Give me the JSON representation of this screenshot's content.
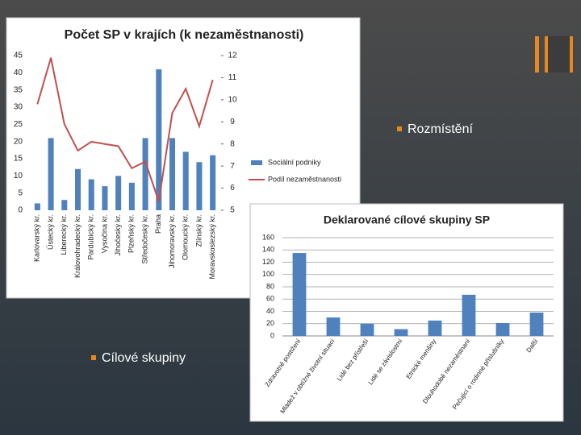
{
  "slide": {
    "bullets": [
      "Rozmístění",
      "Cílové skupiny"
    ]
  },
  "chart_data": [
    {
      "type": "bar",
      "title": "Počet SP v krajích (k nezaměstnanosti)",
      "categories": [
        "Karlovarský kr.",
        "Ústecký kr.",
        "Liberecký kr.",
        "Královohradecký kr.",
        "Pardubický kr.",
        "Vysočina kr.",
        "Jihočeský kr.",
        "Plzeňský kr.",
        "Středočeský kr.",
        "Praha",
        "Jihomoravský kr.",
        "Olomoucký kr.",
        "Zlínský kr.",
        "Moravskoslezský kr."
      ],
      "series": [
        {
          "name": "Sociální podniky",
          "type": "bar",
          "color": "#4f81bd",
          "values": [
            2,
            21,
            3,
            12,
            9,
            7,
            10,
            8,
            21,
            41,
            21,
            17,
            14,
            16
          ]
        },
        {
          "name": "Podíl nezaměstnanosti",
          "type": "line",
          "axis": "y2",
          "color": "#c0504d",
          "values": [
            9.8,
            11.9,
            8.9,
            7.7,
            8.1,
            8.0,
            7.9,
            6.9,
            7.2,
            5.4,
            9.4,
            10.5,
            8.8,
            10.9
          ]
        }
      ],
      "ylim": [
        0,
        45
      ],
      "yticks": [
        0,
        5,
        10,
        15,
        20,
        25,
        30,
        35,
        40,
        45
      ],
      "y2lim": [
        5,
        12
      ],
      "y2ticks": [
        5,
        6,
        7,
        8,
        9,
        10,
        11,
        12
      ],
      "grid": false,
      "legend": "right"
    },
    {
      "type": "bar",
      "title": "Deklarované cílové skupiny SP",
      "categories": [
        "Zdravotně postižení",
        "Mládež v obtížné životní situaci",
        "Lidé bez přístřeší",
        "Lidé se závislostmi",
        "Etnické menšiny",
        "Dlouhodobě nezaměstnaní",
        "Pečující o rodinné příslušníky",
        "Další"
      ],
      "values": [
        135,
        30,
        20,
        11,
        25,
        67,
        21,
        38
      ],
      "color": "#4f81bd",
      "ylim": [
        0,
        160
      ],
      "yticks": [
        0,
        20,
        40,
        60,
        80,
        100,
        120,
        140,
        160
      ],
      "grid": true
    }
  ]
}
